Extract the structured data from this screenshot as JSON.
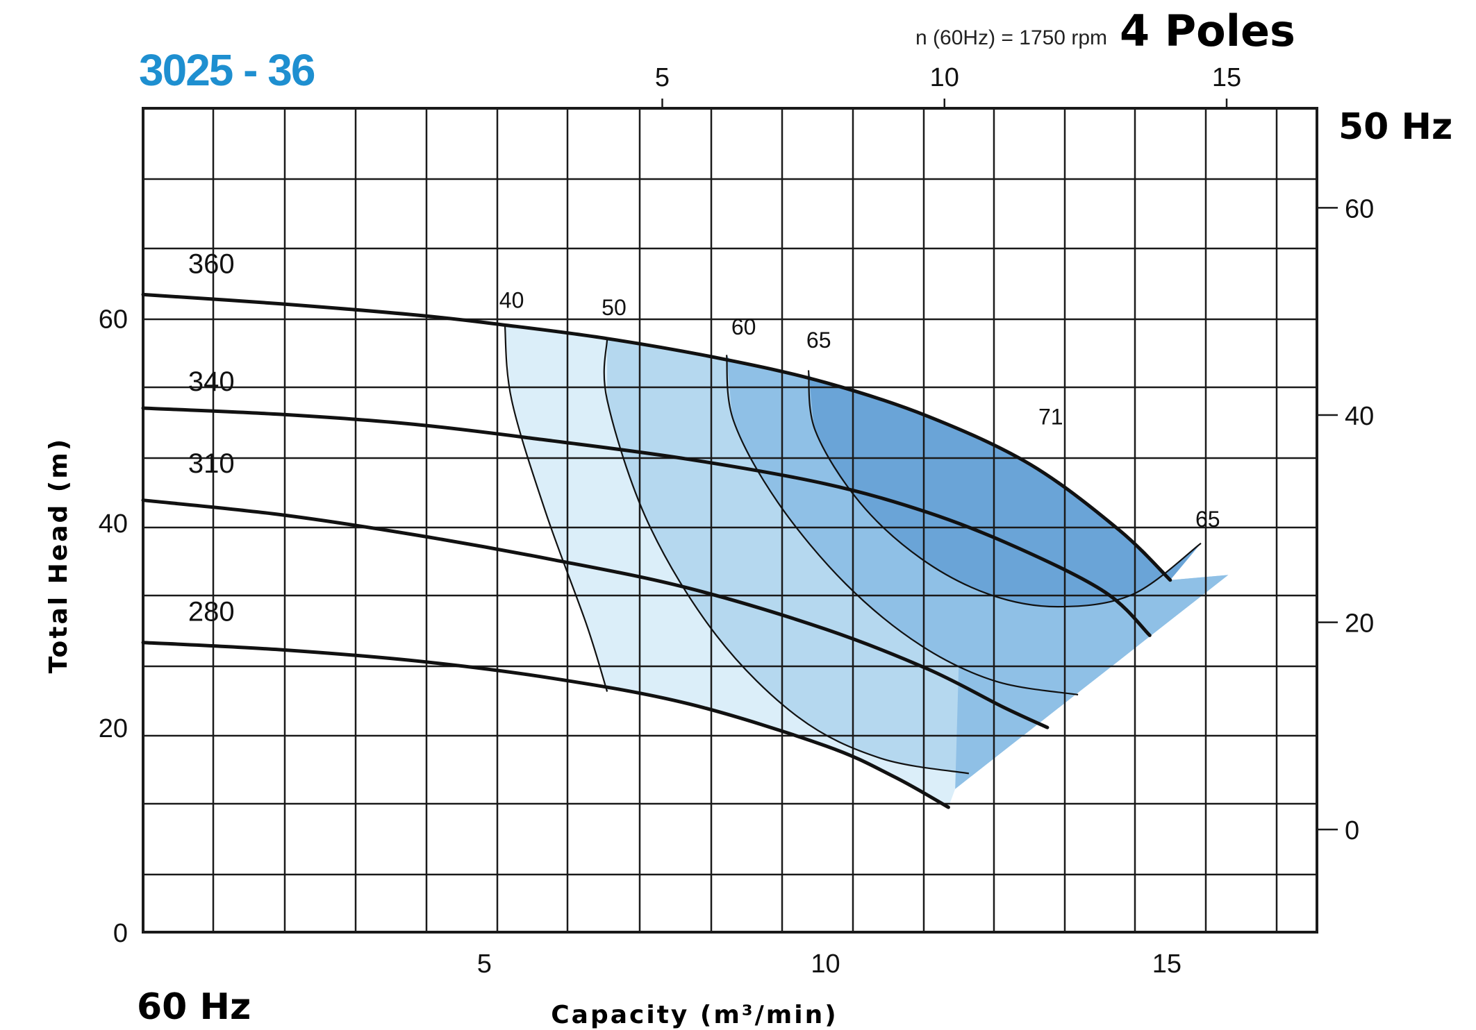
{
  "header": {
    "model": "3025 - 36",
    "speed_label": "n (60Hz) = 1750 rpm",
    "poles": "4 Poles",
    "freq_50": "50 Hz",
    "freq_60": "60 Hz"
  },
  "colors": {
    "model_text": "#1e8fd0",
    "grid": "#1a1a1a",
    "curve": "#111111",
    "zone_40": "#dbeef9",
    "zone_50": "#b5d8ef",
    "zone_60": "#8fc0e6",
    "zone_65": "#6aa4d7",
    "zone_71": "#5b98cf"
  },
  "chart_data": {
    "type": "line",
    "title": "3025 - 36",
    "xlabel": "Capacity (m³/min)",
    "ylabel": "Total Head (m)",
    "x_axis_60hz": {
      "lim": [
        0,
        17.2
      ],
      "ticks": [
        5,
        10,
        15
      ]
    },
    "y_axis_60hz": {
      "lim": [
        0,
        80.5
      ],
      "ticks": [
        0,
        20,
        40,
        60
      ]
    },
    "x_axis_50hz": {
      "lim": [
        -4.2,
        16.6
      ],
      "ticks": [
        5,
        10,
        15
      ]
    },
    "y_axis_50hz": {
      "lim": [
        -9.9,
        69.6
      ],
      "ticks": [
        0,
        20,
        40,
        60
      ]
    },
    "grid": true,
    "impeller_curves": [
      {
        "name": "360",
        "x": [
          0,
          2,
          4,
          5.2,
          6.8,
          8.5,
          10,
          11.5,
          13,
          14.3,
          15.05
        ],
        "y": [
          62.3,
          61.4,
          60.3,
          59.4,
          58.0,
          56.0,
          53.7,
          50.4,
          45.7,
          39.3,
          34.4
        ]
      },
      {
        "name": "340",
        "x": [
          0,
          2,
          4,
          6,
          8,
          10,
          11.5,
          12.8,
          14.1,
          14.75
        ],
        "y": [
          51.2,
          50.6,
          49.6,
          48.0,
          46.2,
          43.8,
          41.0,
          37.6,
          33.2,
          29.0
        ]
      },
      {
        "name": "310",
        "x": [
          0,
          2,
          4,
          6,
          8,
          10,
          11.5,
          12.6,
          13.25
        ],
        "y": [
          42.2,
          40.8,
          38.8,
          36.4,
          33.6,
          29.6,
          25.7,
          22.0,
          20.0
        ]
      },
      {
        "name": "280",
        "x": [
          0,
          2,
          4,
          6,
          8,
          10,
          11.0,
          11.8
        ],
        "y": [
          28.3,
          27.6,
          26.5,
          24.8,
          22.3,
          18.2,
          15.2,
          12.2
        ]
      }
    ],
    "efficiency_curves": [
      {
        "name": "40",
        "x": [
          5.3,
          5.4,
          5.9,
          6.5,
          6.8
        ],
        "y": [
          59.4,
          52.0,
          41.0,
          30.0,
          23.5
        ]
      },
      {
        "name": "50",
        "x": [
          6.8,
          6.8,
          7.4,
          8.4,
          9.6,
          10.8,
          12.1
        ],
        "y": [
          58.0,
          52.0,
          40.0,
          29.0,
          21.0,
          17.0,
          15.5
        ]
      },
      {
        "name": "60",
        "x": [
          8.55,
          8.65,
          9.3,
          10.3,
          11.4,
          12.5,
          13.7
        ],
        "y": [
          56.4,
          50.0,
          42.0,
          34.0,
          28.0,
          24.5,
          23.2
        ]
      },
      {
        "name": "65",
        "x": [
          9.75,
          9.85,
          10.5,
          11.4,
          12.4,
          13.4,
          14.5,
          15.5
        ],
        "y": [
          54.9,
          49.0,
          42.0,
          36.5,
          33.0,
          31.8,
          33.0,
          38.0
        ]
      }
    ],
    "region_boundary": {
      "x": [
        15.9,
        11.9
      ],
      "y": [
        34.9,
        14.0
      ]
    },
    "annotations": [
      {
        "text": "360",
        "x": 1.0,
        "y": 64.4
      },
      {
        "text": "340",
        "x": 1.0,
        "y": 52.9
      },
      {
        "text": "310",
        "x": 1.0,
        "y": 44.9
      },
      {
        "text": "280",
        "x": 1.0,
        "y": 30.4
      },
      {
        "text": "40",
        "x": 5.4,
        "y": 61.0
      },
      {
        "text": "50",
        "x": 6.9,
        "y": 60.3
      },
      {
        "text": "60",
        "x": 8.8,
        "y": 58.4
      },
      {
        "text": "65",
        "x": 9.9,
        "y": 57.1
      },
      {
        "text": "71",
        "x": 13.3,
        "y": 49.6
      },
      {
        "text": "65",
        "x": 15.6,
        "y": 39.6
      }
    ]
  }
}
